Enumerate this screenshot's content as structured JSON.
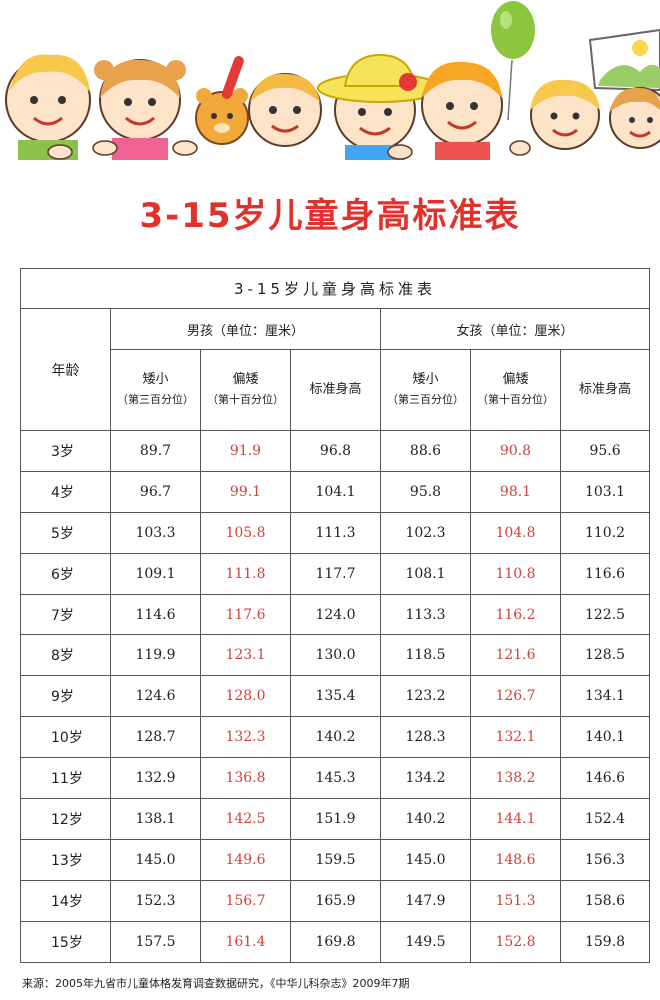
{
  "title": "3-15岁儿童身高标准表",
  "table": {
    "title": "3-15岁儿童身高标准表",
    "age_header": "年龄",
    "boys_header": "男孩（单位：厘米）",
    "girls_header": "女孩（单位：厘米）",
    "sub_headers": [
      {
        "label": "矮小",
        "note": "（第三百分位）"
      },
      {
        "label": "偏矮",
        "note": "（第十百分位）"
      },
      {
        "label": "标准身高",
        "note": ""
      },
      {
        "label": "矮小",
        "note": "（第三百分位）"
      },
      {
        "label": "偏矮",
        "note": "（第十百分位）"
      },
      {
        "label": "标准身高",
        "note": ""
      }
    ],
    "rows": [
      {
        "age": "3岁",
        "boy_short": "89.7",
        "boy_low": "91.9",
        "boy_std": "96.8",
        "girl_short": "88.6",
        "girl_low": "90.8",
        "girl_std": "95.6"
      },
      {
        "age": "4岁",
        "boy_short": "96.7",
        "boy_low": "99.1",
        "boy_std": "104.1",
        "girl_short": "95.8",
        "girl_low": "98.1",
        "girl_std": "103.1"
      },
      {
        "age": "5岁",
        "boy_short": "103.3",
        "boy_low": "105.8",
        "boy_std": "111.3",
        "girl_short": "102.3",
        "girl_low": "104.8",
        "girl_std": "110.2"
      },
      {
        "age": "6岁",
        "boy_short": "109.1",
        "boy_low": "111.8",
        "boy_std": "117.7",
        "girl_short": "108.1",
        "girl_low": "110.8",
        "girl_std": "116.6"
      },
      {
        "age": "7岁",
        "boy_short": "114.6",
        "boy_low": "117.6",
        "boy_std": "124.0",
        "girl_short": "113.3",
        "girl_low": "116.2",
        "girl_std": "122.5"
      },
      {
        "age": "8岁",
        "boy_short": "119.9",
        "boy_low": "123.1",
        "boy_std": "130.0",
        "girl_short": "118.5",
        "girl_low": "121.6",
        "girl_std": "128.5"
      },
      {
        "age": "9岁",
        "boy_short": "124.6",
        "boy_low": "128.0",
        "boy_std": "135.4",
        "girl_short": "123.2",
        "girl_low": "126.7",
        "girl_std": "134.1"
      },
      {
        "age": "10岁",
        "boy_short": "128.7",
        "boy_low": "132.3",
        "boy_std": "140.2",
        "girl_short": "128.3",
        "girl_low": "132.1",
        "girl_std": "140.1"
      },
      {
        "age": "11岁",
        "boy_short": "132.9",
        "boy_low": "136.8",
        "boy_std": "145.3",
        "girl_short": "134.2",
        "girl_low": "138.2",
        "girl_std": "146.6"
      },
      {
        "age": "12岁",
        "boy_short": "138.1",
        "boy_low": "142.5",
        "boy_std": "151.9",
        "girl_short": "140.2",
        "girl_low": "144.1",
        "girl_std": "152.4"
      },
      {
        "age": "13岁",
        "boy_short": "145.0",
        "boy_low": "149.6",
        "boy_std": "159.5",
        "girl_short": "145.0",
        "girl_low": "148.6",
        "girl_std": "156.3"
      },
      {
        "age": "14岁",
        "boy_short": "152.3",
        "boy_low": "156.7",
        "boy_std": "165.9",
        "girl_short": "147.9",
        "girl_low": "151.3",
        "girl_std": "158.6"
      },
      {
        "age": "15岁",
        "boy_short": "157.5",
        "boy_low": "161.4",
        "boy_std": "169.8",
        "girl_short": "149.5",
        "girl_low": "152.8",
        "girl_std": "159.8"
      }
    ]
  },
  "source": "来源：2005年九省市儿童体格发育调查数据研究，《中华儿科杂志》2009年7期",
  "colors": {
    "title_red": "#e0312a",
    "value_red": "#d0433a",
    "border": "#555555"
  },
  "icons": [
    "children-illustration",
    "balloon-icon",
    "sun-hat-icon",
    "teddy-bear-icon",
    "sign-board-icon"
  ]
}
